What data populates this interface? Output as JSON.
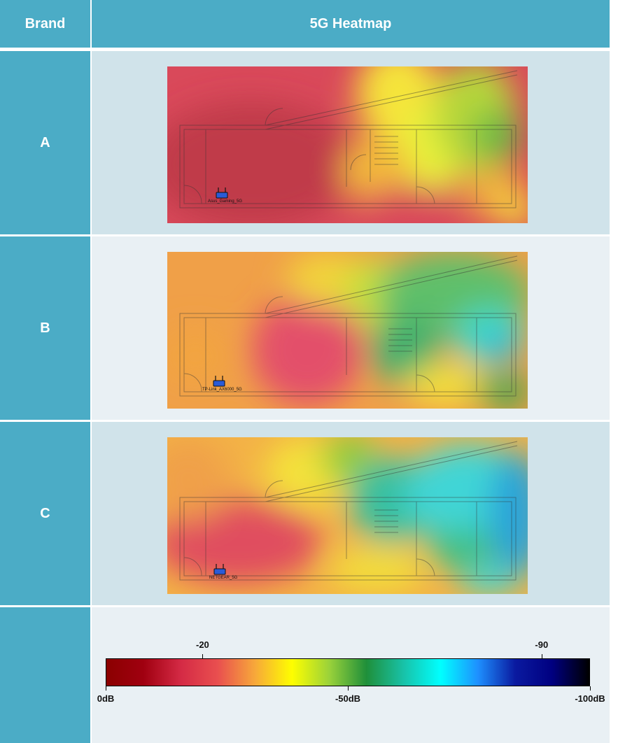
{
  "header": {
    "brand_label": "Brand",
    "heatmap_label": "5G Heatmap"
  },
  "rows": [
    {
      "brand": "A",
      "router_label": "Asus_Gaming_5G",
      "router_pos": [
        0.15,
        0.77
      ]
    },
    {
      "brand": "B",
      "router_label": "TP-Link_AX6000_5G",
      "router_pos": [
        0.14,
        0.82
      ]
    },
    {
      "brand": "C",
      "router_label": "NETGEAR_5G",
      "router_pos": [
        0.145,
        0.84
      ]
    }
  ],
  "legend": {
    "upper_ticks": [
      {
        "label": "-20",
        "value": -20
      },
      {
        "label": "-90",
        "value": -90
      }
    ],
    "lower_ticks": [
      {
        "label": "0dB",
        "value": 0
      },
      {
        "label": "-50dB",
        "value": -50
      },
      {
        "label": "-100dB",
        "value": -100
      }
    ],
    "range": [
      0,
      -100
    ],
    "gradient": [
      "#8b0000",
      "#a00010",
      "#d42a45",
      "#e94f4f",
      "#f7a83a",
      "#fefe00",
      "#9ad23a",
      "#1f8f3a",
      "#18c2a8",
      "#00ffff",
      "#1e90ff",
      "#0a1aa0",
      "#000080",
      "#000000"
    ]
  }
}
